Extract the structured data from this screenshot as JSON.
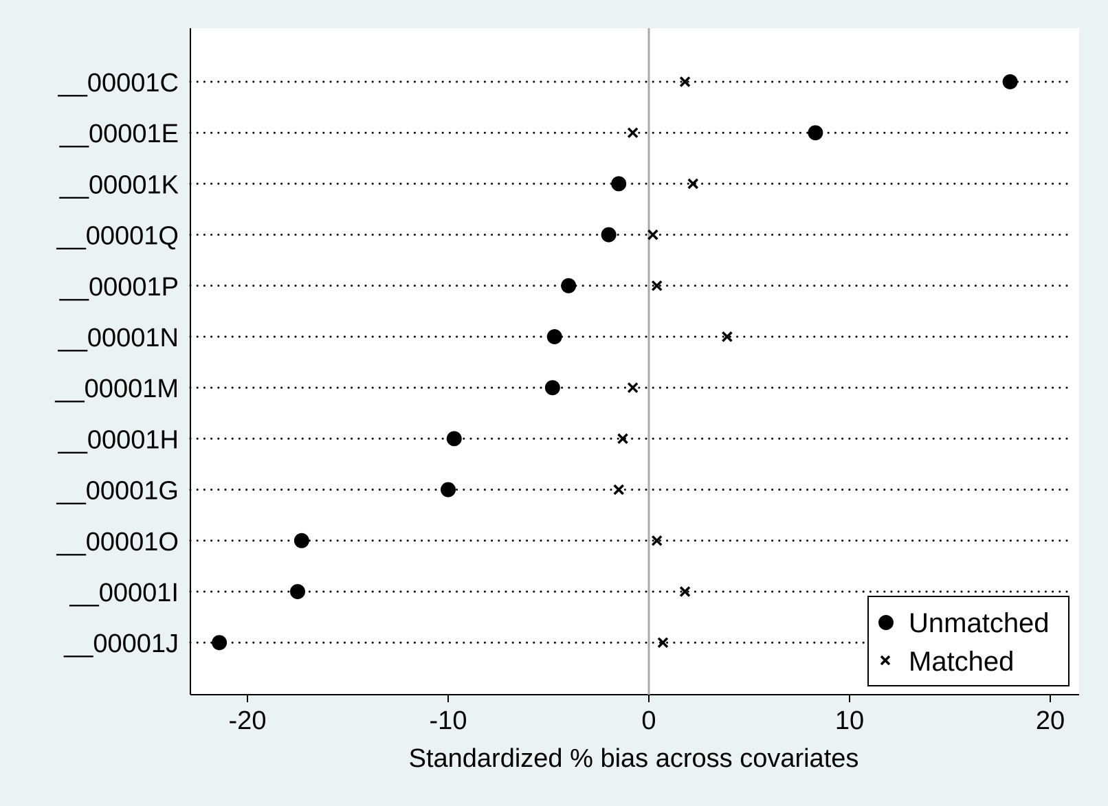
{
  "chart_data": {
    "type": "scatter",
    "title": "",
    "xlabel": "Standardized % bias across covariates",
    "ylabel": "",
    "xlim": [
      -22.5,
      21.5
    ],
    "xticks": [
      -20,
      -10,
      0,
      10,
      20
    ],
    "xtick_labels": [
      "-20",
      "-10",
      "0",
      "10",
      "20"
    ],
    "reference_line_x": 0,
    "grid": "dotted horizontal lines per covariate",
    "legend_position": "bottom-right",
    "categories": [
      "__00001C",
      "__00001E",
      "__00001K",
      "__00001Q",
      "__00001P",
      "__00001N",
      "__00001M",
      "__00001H",
      "__00001G",
      "__00001O",
      "__00001I",
      "__00001J"
    ],
    "series": [
      {
        "name": "Unmatched",
        "marker": "circle",
        "values": [
          18.0,
          8.3,
          -1.5,
          -2.0,
          -4.0,
          -4.7,
          -4.8,
          -9.7,
          -10.0,
          -17.3,
          -17.5,
          -21.4
        ]
      },
      {
        "name": "Matched",
        "marker": "x",
        "values": [
          1.8,
          -0.8,
          2.2,
          0.2,
          0.4,
          3.9,
          -0.8,
          -1.3,
          -1.5,
          0.4,
          1.8,
          0.7
        ]
      }
    ]
  }
}
